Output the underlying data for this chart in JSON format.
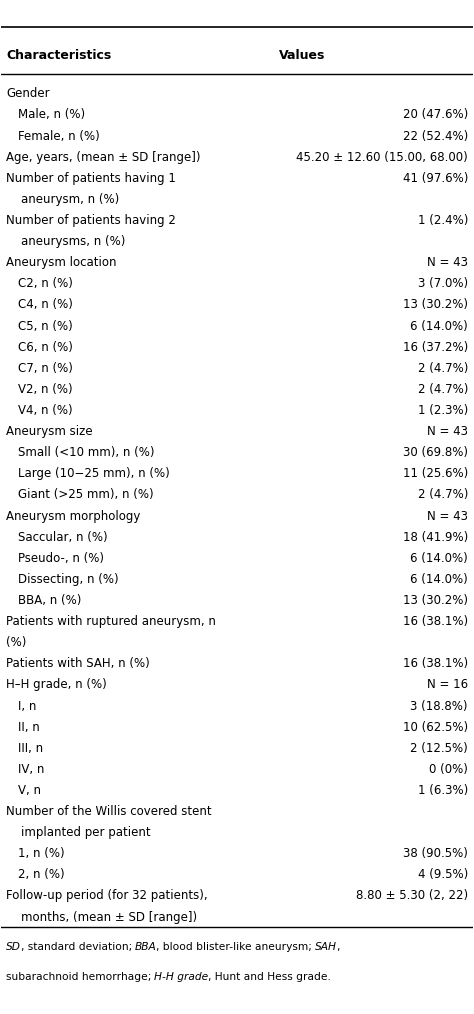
{
  "title_left": "Characteristics",
  "title_right": "Values",
  "rows": [
    {
      "left": "Gender",
      "right": "",
      "indent": 0,
      "bold_left": false
    },
    {
      "left": "Male, n (%)",
      "right": "20 (47.6%)",
      "indent": 1,
      "bold_left": false
    },
    {
      "left": "Female, n (%)",
      "right": "22 (52.4%)",
      "indent": 1,
      "bold_left": false
    },
    {
      "left": "Age, years, (mean ± SD [range])",
      "right": "45.20 ± 12.60 (15.00, 68.00)",
      "indent": 0,
      "bold_left": false
    },
    {
      "left": "Number of patients having 1",
      "right": "41 (97.6%)",
      "indent": 0,
      "bold_left": false
    },
    {
      "left": "    aneurysm, n (%)",
      "right": "",
      "indent": 0,
      "bold_left": false
    },
    {
      "left": "Number of patients having 2",
      "right": "1 (2.4%)",
      "indent": 0,
      "bold_left": false
    },
    {
      "left": "    aneurysms, n (%)",
      "right": "",
      "indent": 0,
      "bold_left": false
    },
    {
      "left": "Aneurysm location",
      "right": "N = 43",
      "indent": 0,
      "bold_left": false
    },
    {
      "left": "C2, n (%)",
      "right": "3 (7.0%)",
      "indent": 1,
      "bold_left": false
    },
    {
      "left": "C4, n (%)",
      "right": "13 (30.2%)",
      "indent": 1,
      "bold_left": false
    },
    {
      "left": "C5, n (%)",
      "right": "6 (14.0%)",
      "indent": 1,
      "bold_left": false
    },
    {
      "left": "C6, n (%)",
      "right": "16 (37.2%)",
      "indent": 1,
      "bold_left": false
    },
    {
      "left": "C7, n (%)",
      "right": "2 (4.7%)",
      "indent": 1,
      "bold_left": false
    },
    {
      "left": "V2, n (%)",
      "right": "2 (4.7%)",
      "indent": 1,
      "bold_left": false
    },
    {
      "left": "V4, n (%)",
      "right": "1 (2.3%)",
      "indent": 1,
      "bold_left": false
    },
    {
      "left": "Aneurysm size",
      "right": "N = 43",
      "indent": 0,
      "bold_left": false
    },
    {
      "left": "Small (<10 mm), n (%)",
      "right": "30 (69.8%)",
      "indent": 1,
      "bold_left": false
    },
    {
      "left": "Large (10−25 mm), n (%)",
      "right": "11 (25.6%)",
      "indent": 1,
      "bold_left": false
    },
    {
      "left": "Giant (>25 mm), n (%)",
      "right": "2 (4.7%)",
      "indent": 1,
      "bold_left": false
    },
    {
      "left": "Aneurysm morphology",
      "right": "N = 43",
      "indent": 0,
      "bold_left": false
    },
    {
      "left": "Saccular, n (%)",
      "right": "18 (41.9%)",
      "indent": 1,
      "bold_left": false
    },
    {
      "left": "Pseudo-, n (%)",
      "right": "6 (14.0%)",
      "indent": 1,
      "bold_left": false
    },
    {
      "left": "Dissecting, n (%)",
      "right": "6 (14.0%)",
      "indent": 1,
      "bold_left": false
    },
    {
      "left": "BBA, n (%)",
      "right": "13 (30.2%)",
      "indent": 1,
      "bold_left": false
    },
    {
      "left": "Patients with ruptured aneurysm, n",
      "right": "16 (38.1%)",
      "indent": 0,
      "bold_left": false
    },
    {
      "left": "(%)",
      "right": "",
      "indent": 0,
      "bold_left": false
    },
    {
      "left": "Patients with SAH, n (%)",
      "right": "16 (38.1%)",
      "indent": 0,
      "bold_left": false
    },
    {
      "left": "H–H grade, n (%)",
      "right": "N = 16",
      "indent": 0,
      "bold_left": false
    },
    {
      "left": "I, n",
      "right": "3 (18.8%)",
      "indent": 1,
      "bold_left": false
    },
    {
      "left": "II, n",
      "right": "10 (62.5%)",
      "indent": 1,
      "bold_left": false
    },
    {
      "left": "III, n",
      "right": "2 (12.5%)",
      "indent": 1,
      "bold_left": false
    },
    {
      "left": "IV, n",
      "right": "0 (0%)",
      "indent": 1,
      "bold_left": false
    },
    {
      "left": "V, n",
      "right": "1 (6.3%)",
      "indent": 1,
      "bold_left": false
    },
    {
      "left": "Number of the Willis covered stent",
      "right": "",
      "indent": 0,
      "bold_left": false
    },
    {
      "left": "    implanted per patient",
      "right": "",
      "indent": 0,
      "bold_left": false
    },
    {
      "left": "1, n (%)",
      "right": "38 (90.5%)",
      "indent": 1,
      "bold_left": false
    },
    {
      "left": "2, n (%)",
      "right": "4 (9.5%)",
      "indent": 1,
      "bold_left": false
    },
    {
      "left": "Follow-up period (for 32 patients),",
      "right": "8.80 ± 5.30 (2, 22)",
      "indent": 0,
      "bold_left": false
    },
    {
      "left": "    months, (mean ± SD [range])",
      "right": "",
      "indent": 0,
      "bold_left": false
    }
  ],
  "footnote_parts": [
    {
      "text": "SD",
      "italic": true
    },
    {
      "text": ", standard deviation; ",
      "italic": false
    },
    {
      "text": "BBA",
      "italic": true
    },
    {
      "text": ", blood blister-like aneurysm; ",
      "italic": false
    },
    {
      "text": "SAH",
      "italic": true
    },
    {
      "text": ",\nsubarachnoid hemorrhage; ",
      "italic": false
    },
    {
      "text": "H-H grade",
      "italic": true
    },
    {
      "text": ", Hunt and Hess grade.",
      "italic": false
    }
  ],
  "bg_color": "#ffffff",
  "text_color": "#000000",
  "font_size": 8.5,
  "indent_size": 0.025,
  "col_split": 0.58
}
